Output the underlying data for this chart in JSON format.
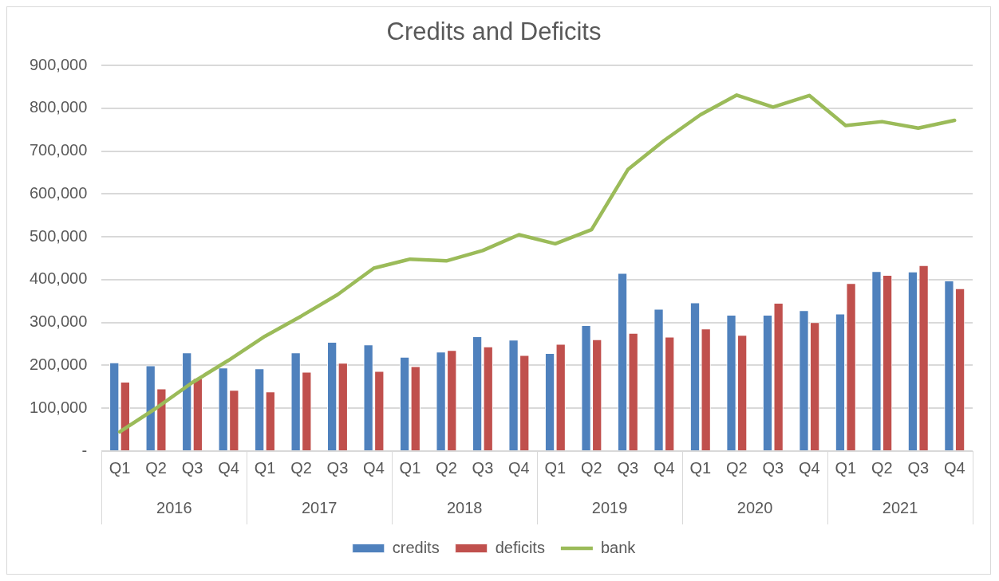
{
  "chart_data": {
    "type": "bar",
    "title": "Credits and Deficits",
    "categories": [
      "Q1",
      "Q2",
      "Q3",
      "Q4",
      "Q1",
      "Q2",
      "Q3",
      "Q4",
      "Q1",
      "Q2",
      "Q3",
      "Q4",
      "Q1",
      "Q2",
      "Q3",
      "Q4",
      "Q1",
      "Q2",
      "Q3",
      "Q4",
      "Q1",
      "Q2",
      "Q3",
      "Q4"
    ],
    "series": [
      {
        "name": "credits",
        "color": "#4f81bd",
        "values": [
          207000,
          200000,
          230000,
          195000,
          193000,
          230000,
          255000,
          249000,
          220000,
          232000,
          268000,
          260000,
          229000,
          294000,
          416000,
          332000,
          347000,
          318000,
          318000,
          329000,
          321000,
          420000,
          419000,
          398000
        ]
      },
      {
        "name": "deficits",
        "color": "#c0504d",
        "values": [
          162000,
          146000,
          170000,
          143000,
          139000,
          185000,
          206000,
          187000,
          198000,
          236000,
          244000,
          224000,
          250000,
          261000,
          276000,
          267000,
          286000,
          271000,
          346000,
          301000,
          392000,
          411000,
          434000,
          380000
        ]
      },
      {
        "name": "bank",
        "type": "line",
        "color": "#9bbb59",
        "values": [
          45000,
          100000,
          160000,
          212000,
          268000,
          315000,
          365000,
          427000,
          448000,
          444000,
          468000,
          505000,
          484000,
          517000,
          657000,
          725000,
          785000,
          831000,
          803000,
          830000,
          760000,
          769000,
          754000,
          772000
        ]
      }
    ],
    "annotations": [
      "2016",
      "2017",
      "2018",
      "2019",
      "2020",
      "2021"
    ],
    "ylim": [
      0,
      900000
    ],
    "yticks": [
      {
        "value": 0,
        "label": "-"
      },
      {
        "value": 100000,
        "label": "100,000"
      },
      {
        "value": 200000,
        "label": "200,000"
      },
      {
        "value": 300000,
        "label": "300,000"
      },
      {
        "value": 400000,
        "label": "400,000"
      },
      {
        "value": 500000,
        "label": "500,000"
      },
      {
        "value": 600000,
        "label": "600,000"
      },
      {
        "value": 700000,
        "label": "700,000"
      },
      {
        "value": 800000,
        "label": "800,000"
      },
      {
        "value": 900000,
        "label": "900,000"
      }
    ],
    "grid": "y",
    "legend": "bottom",
    "line_style": "solid",
    "marker": "none"
  }
}
